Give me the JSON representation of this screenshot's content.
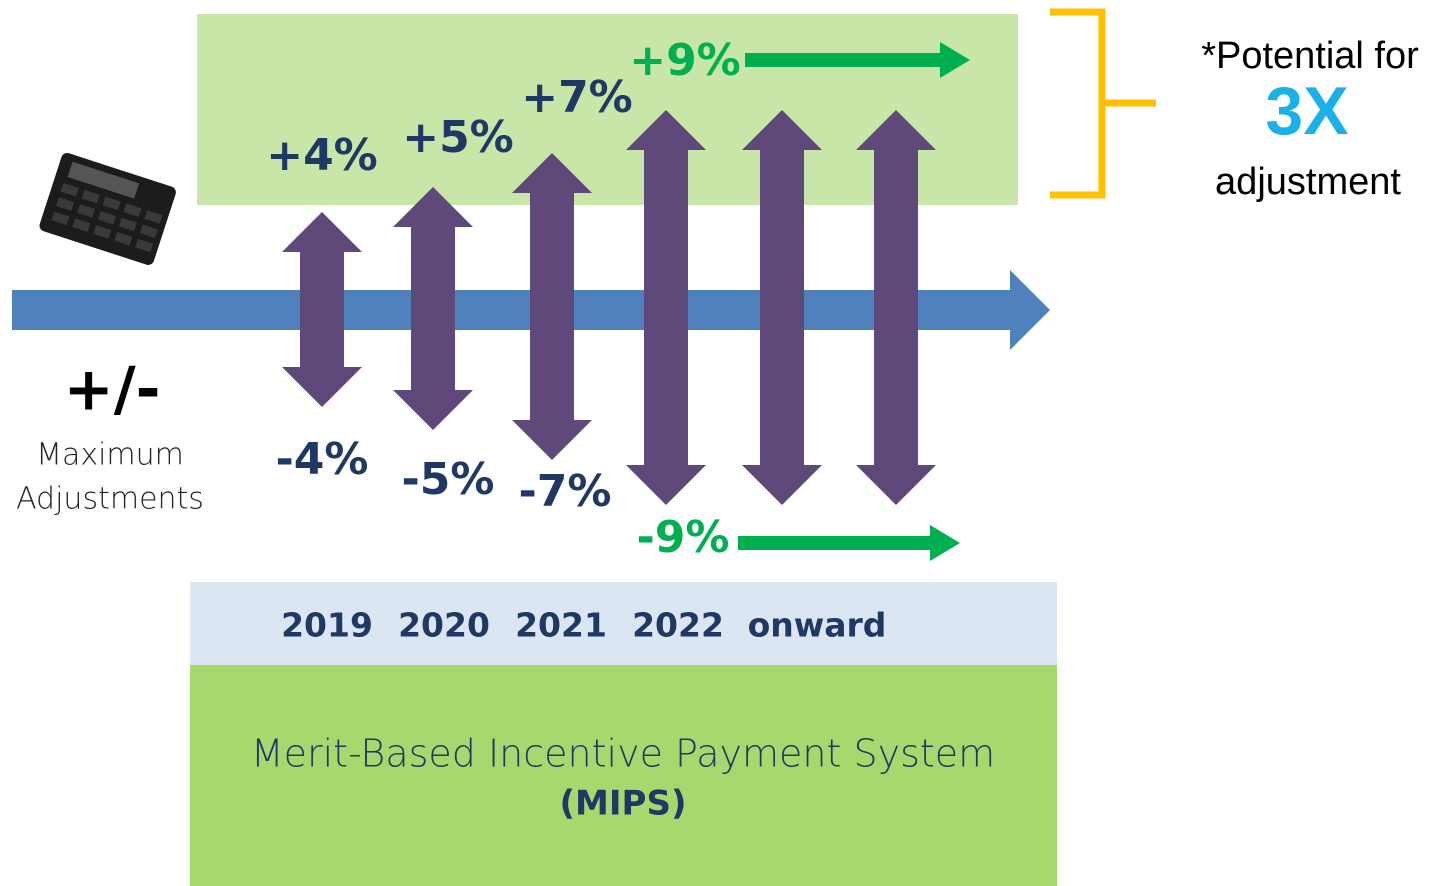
{
  "callout": {
    "prefix": "*Potential for",
    "highlight": "3X",
    "suffix": "adjustment"
  },
  "legend": {
    "symbol": "+/-",
    "line1": "Maximum",
    "line2": "Adjustments"
  },
  "increases": [
    "+4%",
    "+5%",
    "+7%",
    "+9%"
  ],
  "decreases": [
    "-4%",
    "-5%",
    "-7%",
    "-9%"
  ],
  "years": [
    "2019",
    "2020",
    "2021",
    "2022",
    "onward"
  ],
  "program": {
    "name": "Merit-Based Incentive Payment System",
    "acronym": "(MIPS)"
  }
}
